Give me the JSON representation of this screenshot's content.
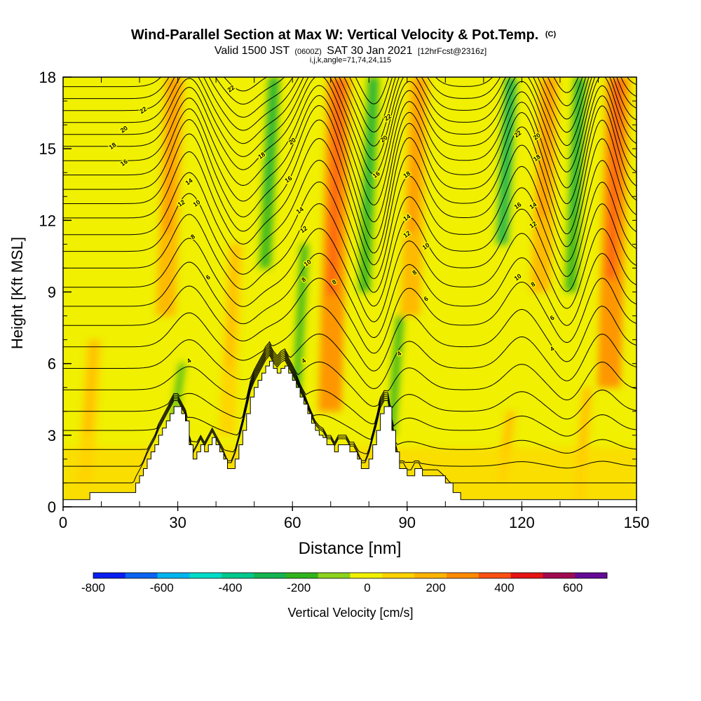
{
  "chart_data": {
    "type": "heatmap",
    "title": "Wind-Parallel Section at Max W: Vertical Velocity & Pot.Temp.",
    "title_mark": "(C)",
    "subtitle": {
      "valid": "Valid 1500 JST",
      "utc": "(0600Z)",
      "date": "SAT 30 Jan 2021",
      "forecast": "[12hrFcst@2316z]"
    },
    "params_line": "i,j,k,angle=71,74,24,115",
    "xlabel": "Distance [nm]",
    "ylabel": "Height [Kft MSL]",
    "xlim": [
      0,
      150
    ],
    "ylim": [
      0,
      18
    ],
    "x_ticks": [
      "0",
      "30",
      "60",
      "90",
      "120",
      "150"
    ],
    "x_tick_values": [
      0,
      30,
      60,
      90,
      120,
      150
    ],
    "y_ticks": [
      "0",
      "3",
      "6",
      "9",
      "12",
      "15",
      "18"
    ],
    "y_tick_values": [
      0,
      3,
      6,
      9,
      12,
      15,
      18
    ],
    "colorbar": {
      "label": "Vertical Velocity [cm/s]",
      "tick_labels": [
        "-800",
        "-600",
        "-400",
        "-200",
        "0",
        "200",
        "400",
        "600"
      ],
      "tick_values": [
        -800,
        -600,
        -400,
        -200,
        0,
        200,
        400,
        600
      ],
      "range": [
        -800,
        700
      ],
      "bin_width": 100,
      "colors": [
        "#0a1ef0",
        "#0a64f0",
        "#00b4f0",
        "#00dcc8",
        "#00c88c",
        "#14b450",
        "#32b41e",
        "#8cd21e",
        "#f0f000",
        "#ffd200",
        "#ffb400",
        "#ff8c00",
        "#ff5014",
        "#e61414",
        "#a00a50",
        "#640a96"
      ]
    },
    "terrain": {
      "x": [
        0,
        7,
        14,
        18,
        19,
        20,
        21,
        22,
        23,
        24,
        25,
        26,
        27,
        28,
        29,
        30,
        31,
        32,
        33,
        34,
        35,
        36,
        37,
        38,
        39,
        40,
        41,
        42,
        43,
        44,
        45,
        46,
        47,
        48,
        49,
        50,
        51,
        52,
        53,
        54,
        55,
        56,
        57,
        58,
        59,
        60,
        61,
        62,
        63,
        64,
        65,
        66,
        67,
        68,
        69,
        70,
        71,
        72,
        73,
        74,
        75,
        76,
        77,
        78,
        79,
        80,
        81,
        82,
        83,
        84,
        85,
        86,
        87,
        88,
        89,
        90,
        91,
        92,
        93,
        94,
        95,
        96,
        98,
        100,
        102,
        104,
        106,
        108,
        110,
        150
      ],
      "height_kft": [
        0.3,
        0.6,
        0.6,
        0.6,
        1.0,
        1.3,
        1.6,
        2.0,
        2.3,
        2.6,
        3.0,
        3.3,
        3.6,
        3.9,
        4.2,
        4.2,
        3.9,
        3.6,
        2.6,
        2.0,
        2.3,
        2.6,
        2.3,
        2.6,
        2.9,
        2.6,
        2.3,
        2.0,
        1.6,
        1.6,
        2.0,
        2.6,
        3.2,
        3.9,
        4.6,
        5.0,
        5.3,
        5.6,
        5.9,
        6.1,
        5.8,
        5.6,
        5.8,
        5.9,
        5.6,
        5.3,
        5.0,
        4.6,
        4.3,
        3.9,
        3.5,
        3.2,
        3.0,
        2.9,
        2.6,
        2.6,
        2.3,
        2.6,
        2.6,
        2.6,
        2.3,
        2.3,
        2.0,
        1.6,
        1.6,
        2.0,
        2.6,
        3.2,
        3.9,
        4.2,
        4.2,
        3.2,
        2.3,
        1.6,
        1.6,
        1.3,
        1.3,
        1.6,
        1.6,
        1.3,
        1.3,
        1.3,
        1.3,
        1.0,
        0.6,
        0.3,
        0.3,
        0.3,
        0.3,
        0.3
      ]
    },
    "updrafts": [
      {
        "x": 28,
        "width": 5,
        "base": 8,
        "top": 18,
        "w": 250
      },
      {
        "x": 71,
        "width": 6,
        "base": 4,
        "top": 18,
        "w": 320
      },
      {
        "x": 92,
        "width": 5,
        "base": 8,
        "top": 18,
        "w": 220
      },
      {
        "x": 126,
        "width": 5,
        "base": 9,
        "top": 18,
        "w": 230
      },
      {
        "x": 144,
        "width": 6,
        "base": 5,
        "top": 18,
        "w": 330
      },
      {
        "x": 7,
        "width": 4,
        "base": 1,
        "top": 7,
        "w": 120
      },
      {
        "x": 44,
        "width": 4,
        "base": 3,
        "top": 11,
        "w": 110
      },
      {
        "x": 116,
        "width": 3,
        "base": 1,
        "top": 4,
        "w": 110
      },
      {
        "x": 136,
        "width": 3,
        "base": 0,
        "top": 5,
        "w": 150
      }
    ],
    "downdrafts": [
      {
        "x": 54,
        "width": 3,
        "base": 10,
        "top": 18,
        "w": -180
      },
      {
        "x": 80,
        "width": 3,
        "base": 9,
        "top": 18,
        "w": -200
      },
      {
        "x": 62,
        "width": 2,
        "base": 4,
        "top": 11,
        "w": -130
      },
      {
        "x": 87,
        "width": 2,
        "base": 3,
        "top": 8,
        "w": -120
      },
      {
        "x": 116,
        "width": 3,
        "base": 11,
        "top": 18,
        "w": -220
      },
      {
        "x": 134,
        "width": 3,
        "base": 9,
        "top": 18,
        "w": -180
      },
      {
        "x": 30,
        "width": 1.5,
        "base": 3.5,
        "top": 6,
        "w": -110
      }
    ],
    "isentropes": {
      "levels": [
        1,
        1.7,
        2.4,
        3.2,
        4,
        4.9,
        5.8,
        6.7,
        7.6,
        8.4,
        9.2,
        10,
        10.7,
        11.4,
        12.1,
        12.7,
        13.3,
        13.9,
        14.5,
        15.1,
        15.6,
        16.1,
        16.6,
        17.1,
        17.6,
        18.1
      ],
      "waves": [
        {
          "x": 33,
          "amp": 3.0,
          "width": 6
        },
        {
          "x": 47,
          "amp": -1.2,
          "width": 5
        },
        {
          "x": 67,
          "amp": 3.6,
          "width": 7
        },
        {
          "x": 82,
          "amp": -2.6,
          "width": 5
        },
        {
          "x": 90,
          "amp": 3.0,
          "width": 6
        },
        {
          "x": 120,
          "amp": 3.3,
          "width": 6
        },
        {
          "x": 132,
          "amp": -1.5,
          "width": 4
        },
        {
          "x": 141,
          "amp": 3.6,
          "width": 5
        }
      ],
      "labels": [
        {
          "text": "22",
          "x": 44,
          "y": 17.5
        },
        {
          "text": "22",
          "x": 21,
          "y": 16.6
        },
        {
          "text": "20",
          "x": 16,
          "y": 15.8
        },
        {
          "text": "18",
          "x": 13,
          "y": 15.1
        },
        {
          "text": "16",
          "x": 16,
          "y": 14.4
        },
        {
          "text": "14",
          "x": 33,
          "y": 13.6
        },
        {
          "text": "12",
          "x": 31,
          "y": 12.7
        },
        {
          "text": "10",
          "x": 35,
          "y": 12.7
        },
        {
          "text": "8",
          "x": 34,
          "y": 11.3
        },
        {
          "text": "6",
          "x": 38,
          "y": 9.6
        },
        {
          "text": "4",
          "x": 33,
          "y": 6.1
        },
        {
          "text": "18",
          "x": 52,
          "y": 14.7
        },
        {
          "text": "20",
          "x": 60,
          "y": 15.3
        },
        {
          "text": "16",
          "x": 59,
          "y": 13.7
        },
        {
          "text": "14",
          "x": 62,
          "y": 12.4
        },
        {
          "text": "12",
          "x": 63,
          "y": 11.6
        },
        {
          "text": "10",
          "x": 64,
          "y": 10.2
        },
        {
          "text": "8",
          "x": 63,
          "y": 9.5
        },
        {
          "text": "8",
          "x": 71,
          "y": 9.4
        },
        {
          "text": "4",
          "x": 63,
          "y": 6.1
        },
        {
          "text": "22",
          "x": 85,
          "y": 16.3
        },
        {
          "text": "20",
          "x": 84,
          "y": 15.4
        },
        {
          "text": "16",
          "x": 82,
          "y": 13.9
        },
        {
          "text": "18",
          "x": 90,
          "y": 13.9
        },
        {
          "text": "14",
          "x": 90,
          "y": 12.1
        },
        {
          "text": "12",
          "x": 90,
          "y": 11.4
        },
        {
          "text": "10",
          "x": 95,
          "y": 10.9
        },
        {
          "text": "8",
          "x": 92,
          "y": 9.8
        },
        {
          "text": "6",
          "x": 95,
          "y": 8.7
        },
        {
          "text": "4",
          "x": 88,
          "y": 6.4
        },
        {
          "text": "22",
          "x": 119,
          "y": 15.6
        },
        {
          "text": "20",
          "x": 124,
          "y": 15.5
        },
        {
          "text": "18",
          "x": 124,
          "y": 14.6
        },
        {
          "text": "16",
          "x": 119,
          "y": 12.6
        },
        {
          "text": "14",
          "x": 123,
          "y": 12.6
        },
        {
          "text": "12",
          "x": 123,
          "y": 11.8
        },
        {
          "text": "10",
          "x": 119,
          "y": 9.6
        },
        {
          "text": "8",
          "x": 123,
          "y": 9.3
        },
        {
          "text": "6",
          "x": 128,
          "y": 7.9
        },
        {
          "text": "4",
          "x": 128,
          "y": 6.6
        }
      ]
    },
    "grid": false,
    "legend": "bottom colorbar"
  }
}
